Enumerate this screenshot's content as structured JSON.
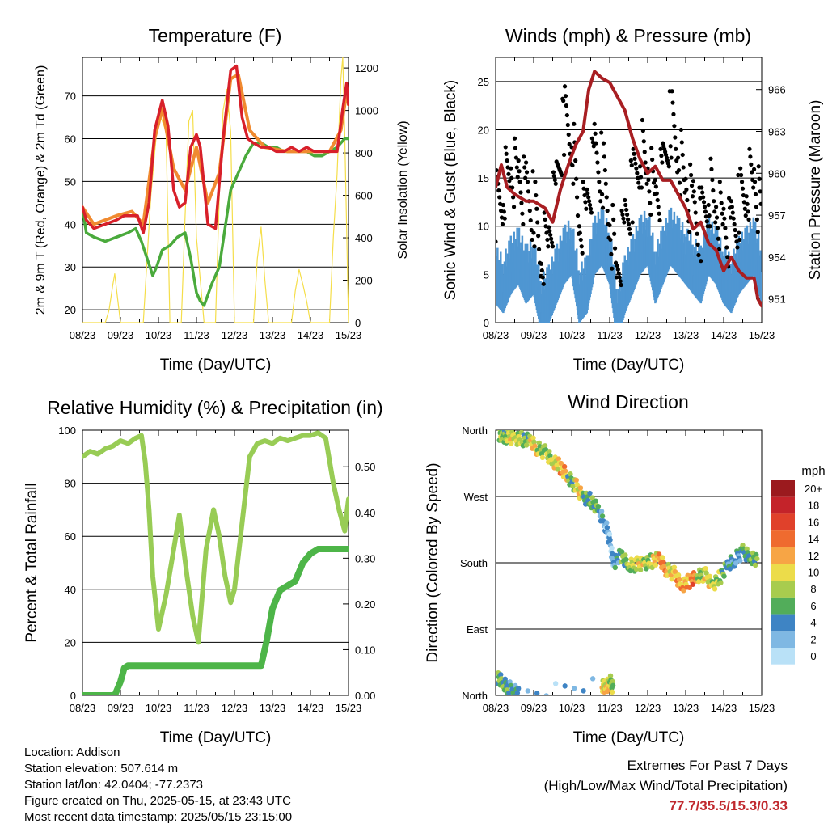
{
  "colors": {
    "temp2m": "#d8202a",
    "temp9m": "#f08a30",
    "dewpoint": "#4aaa3c",
    "insolation": "#f5de4a",
    "wind": "#4f96d2",
    "gust": "#000000",
    "pressure": "#a81e22",
    "rh": "#98cc55",
    "precip": "#4db548"
  },
  "info": {
    "location": "Location: Addison",
    "elevation": "Station elevation: 507.614 m",
    "latlon": "Station lat/lon: 42.0404; -77.2373",
    "created": "Figure created on Thu, 2025-05-15, at 23:43 UTC",
    "recent": "Most recent data timestamp: 2025/05/15 23:15:00"
  },
  "extremes": {
    "line1": "Extremes For Past 7 Days",
    "line2": "(High/Low/Max Wind/Total Precipitation)",
    "values": "77.7/35.5/15.3/0.33"
  },
  "legend": {
    "title": "mph",
    "labels": [
      "20+",
      "18",
      "16",
      "14",
      "12",
      "10",
      "8",
      "6",
      "4",
      "2",
      "0"
    ],
    "colors": [
      "#9b1a1e",
      "#c4232a",
      "#e0412b",
      "#ef6b2f",
      "#f7a545",
      "#ecdc4a",
      "#a8cc4e",
      "#52ad5a",
      "#3e84c4",
      "#7fb8e3",
      "#b9e1f7"
    ]
  },
  "chart_data": [
    {
      "type": "line",
      "title": "Temperature (F)",
      "xlabel": "Time (Day/UTC)",
      "ylabel": "2m & 9m T (Red, Orange) & 2m Td (Green)",
      "y2label": "Solar Insolation (Yellow)",
      "x_ticks": [
        "08/23",
        "09/23",
        "10/23",
        "11/23",
        "12/23",
        "13/23",
        "14/23",
        "15/23"
      ],
      "ylim": [
        17,
        79
      ],
      "yticks": [
        20,
        30,
        40,
        50,
        60,
        70
      ],
      "y2lim": [
        0,
        1250
      ],
      "y2ticks": [
        0,
        200,
        400,
        600,
        800,
        1000,
        1200
      ],
      "series": [
        {
          "key": "temp2m",
          "x": [
            0,
            0.1,
            0.3,
            0.6,
            0.9,
            1.1,
            1.3,
            1.45,
            1.6,
            1.75,
            1.9,
            2.1,
            2.25,
            2.4,
            2.55,
            2.7,
            2.85,
            3.0,
            3.1,
            3.3,
            3.5,
            3.7,
            3.9,
            4.05,
            4.2,
            4.35,
            4.5,
            4.7,
            4.9,
            5.1,
            5.3,
            5.5,
            5.7,
            5.9,
            6.1,
            6.3,
            6.5,
            6.7,
            6.85,
            6.95,
            7.0
          ],
          "y": [
            44,
            41,
            39,
            40,
            41,
            42,
            42,
            42,
            38,
            45,
            62,
            69,
            63,
            48,
            44,
            45,
            58,
            61,
            58,
            40,
            39,
            60,
            76,
            77,
            65,
            60,
            59,
            58,
            58,
            57,
            57,
            58,
            57,
            58,
            57,
            57,
            57,
            57,
            67,
            73,
            68
          ]
        },
        {
          "key": "temp9m",
          "x": [
            0,
            0.3,
            0.9,
            1.3,
            1.6,
            1.9,
            2.1,
            2.4,
            2.7,
            3.0,
            3.3,
            3.6,
            3.9,
            4.1,
            4.4,
            4.8,
            5.4,
            6.0,
            6.5,
            6.8,
            6.95,
            7.0
          ],
          "y": [
            44,
            40,
            42,
            43,
            40,
            60,
            67,
            53,
            48,
            58,
            45,
            52,
            74,
            75,
            62,
            58,
            57,
            57,
            57,
            62,
            71,
            68
          ]
        },
        {
          "key": "dewpoint",
          "x": [
            0,
            0.1,
            0.3,
            0.6,
            0.9,
            1.2,
            1.4,
            1.55,
            1.7,
            1.85,
            1.95,
            2.1,
            2.3,
            2.5,
            2.7,
            2.85,
            3.0,
            3.1,
            3.2,
            3.4,
            3.6,
            3.8,
            3.9,
            4.1,
            4.3,
            4.5,
            4.7,
            4.9,
            5.1,
            5.3,
            5.5,
            5.7,
            5.9,
            6.1,
            6.3,
            6.5,
            6.7,
            6.9,
            7.0
          ],
          "y": [
            44,
            38,
            37,
            36,
            37,
            38,
            39,
            36,
            32,
            28,
            30,
            34,
            35,
            37,
            38,
            32,
            24,
            22,
            21,
            26,
            30,
            42,
            48,
            52,
            56,
            59,
            59,
            58,
            58,
            57,
            57,
            57,
            57,
            56,
            56,
            57,
            58,
            60,
            60
          ]
        },
        {
          "key": "insolation",
          "x": [
            0,
            0.6,
            0.7,
            0.8,
            0.85,
            0.9,
            1.0,
            1.6,
            1.7,
            1.8,
            2.0,
            2.2,
            2.3,
            2.6,
            2.7,
            2.8,
            2.9,
            3.0,
            3.2,
            3.5,
            3.6,
            3.7,
            3.8,
            3.9,
            4.0,
            4.2,
            4.5,
            4.6,
            4.7,
            4.8,
            4.9,
            5.5,
            5.6,
            5.7,
            5.8,
            5.9,
            6.0,
            6.5,
            6.6,
            6.7,
            6.8,
            6.85,
            6.9,
            7.0
          ],
          "y": [
            0,
            0,
            60,
            180,
            230,
            150,
            0,
            0,
            300,
            600,
            1000,
            900,
            0,
            0,
            500,
            950,
            1000,
            400,
            0,
            0,
            600,
            1000,
            1100,
            900,
            0,
            0,
            0,
            300,
            450,
            200,
            0,
            0,
            150,
            250,
            180,
            100,
            0,
            0,
            400,
            700,
            1150,
            1250,
            900,
            0
          ]
        }
      ]
    },
    {
      "type": "scatter",
      "title": "Winds (mph) & Pressure (mb)",
      "xlabel": "Time (Day/UTC)",
      "ylabel": "Sonic Wind & Gust (Blue, Black)",
      "y2label": "Station Pressure (Maroon)",
      "x_ticks": [
        "08/23",
        "09/23",
        "10/23",
        "11/23",
        "12/23",
        "13/23",
        "14/23",
        "15/23"
      ],
      "ylim": [
        0,
        27.5
      ],
      "yticks": [
        0,
        5,
        10,
        15,
        20,
        25
      ],
      "y2lim": [
        949.3,
        968.3
      ],
      "y2ticks": [
        951,
        954,
        957,
        960,
        963,
        966
      ],
      "series": [
        {
          "key": "wind",
          "x": [
            0,
            0.2,
            0.4,
            0.6,
            0.8,
            1.0,
            1.2,
            1.4,
            1.6,
            1.8,
            2.0,
            2.2,
            2.4,
            2.6,
            2.8,
            3.0,
            3.2,
            3.4,
            3.6,
            3.8,
            4.0,
            4.2,
            4.4,
            4.6,
            4.8,
            5.0,
            5.2,
            5.4,
            5.6,
            5.8,
            6.0,
            6.2,
            6.4,
            6.6,
            6.8,
            7.0
          ],
          "y": [
            6,
            5,
            7,
            8,
            6,
            7,
            3,
            4,
            6,
            8,
            9,
            4,
            5,
            9,
            10,
            8,
            2,
            5,
            7,
            9,
            10,
            6,
            8,
            10,
            9,
            8,
            7,
            6,
            9,
            8,
            6,
            5,
            7,
            8,
            9,
            6
          ]
        },
        {
          "key": "gust",
          "x": [
            0,
            0.2,
            0.4,
            0.6,
            0.8,
            1.0,
            1.2,
            1.4,
            1.6,
            1.8,
            2.0,
            2.2,
            2.4,
            2.6,
            2.8,
            3.0,
            3.2,
            3.4,
            3.6,
            3.8,
            4.0,
            4.2,
            4.4,
            4.6,
            4.8,
            5.0,
            5.2,
            5.4,
            5.6,
            5.8,
            6.0,
            6.2,
            6.4,
            6.6,
            6.8,
            7.0
          ],
          "y": [
            12,
            14,
            16,
            15,
            13,
            12,
            7,
            9,
            14,
            21,
            20,
            10,
            12,
            17,
            16,
            11,
            5,
            10,
            14,
            18,
            16,
            13,
            15,
            21,
            18,
            14,
            12,
            10,
            14,
            12,
            10,
            9,
            12,
            14,
            15,
            11
          ]
        },
        {
          "key": "pressure",
          "x": [
            0,
            0.15,
            0.3,
            0.5,
            0.8,
            1.0,
            1.3,
            1.5,
            1.7,
            1.9,
            2.1,
            2.3,
            2.45,
            2.6,
            2.8,
            3.0,
            3.2,
            3.4,
            3.6,
            3.8,
            4.0,
            4.2,
            4.4,
            4.6,
            4.8,
            5.0,
            5.2,
            5.4,
            5.6,
            5.8,
            6.0,
            6.2,
            6.4,
            6.6,
            6.8,
            6.9,
            7.0
          ],
          "y": [
            959,
            960.6,
            959,
            958.5,
            958,
            958,
            957.5,
            956.5,
            958.8,
            960.5,
            962,
            963,
            966,
            967.3,
            966.8,
            966.5,
            965.5,
            964.5,
            962.5,
            961,
            960,
            960.5,
            959.5,
            959.5,
            958.5,
            957.5,
            956,
            956.5,
            955,
            954.5,
            953,
            954,
            953,
            952.5,
            952.5,
            951,
            950.5
          ]
        }
      ]
    },
    {
      "type": "line",
      "title": "Relative Humidity (%) & Precipitation (in)",
      "xlabel": "Time (Day/UTC)",
      "ylabel": "Percent & Total Rainfall",
      "x_ticks": [
        "08/23",
        "09/23",
        "10/23",
        "11/23",
        "12/23",
        "13/23",
        "14/23",
        "15/23"
      ],
      "ylim": [
        0,
        100
      ],
      "yticks": [
        0,
        20,
        40,
        60,
        80,
        100
      ],
      "y2lim": [
        0,
        0.58
      ],
      "y2ticks": [
        "0.00",
        "0.10",
        "0.20",
        "0.30",
        "0.40",
        "0.50"
      ],
      "series": [
        {
          "key": "rh",
          "x": [
            0,
            0.2,
            0.4,
            0.6,
            0.8,
            1.0,
            1.2,
            1.4,
            1.55,
            1.65,
            1.75,
            1.85,
            2.0,
            2.2,
            2.4,
            2.55,
            2.75,
            2.9,
            3.05,
            3.25,
            3.45,
            3.6,
            3.75,
            3.9,
            4.0,
            4.2,
            4.4,
            4.6,
            4.8,
            5.0,
            5.2,
            5.4,
            5.6,
            5.8,
            6.0,
            6.2,
            6.4,
            6.6,
            6.75,
            6.9,
            7.0
          ],
          "y": [
            90,
            92,
            91,
            93,
            94,
            96,
            95,
            97,
            98,
            88,
            70,
            45,
            25,
            38,
            55,
            68,
            45,
            30,
            20,
            55,
            70,
            60,
            45,
            35,
            40,
            65,
            90,
            95,
            96,
            95,
            97,
            96,
            97,
            98,
            98,
            99,
            97,
            80,
            70,
            62,
            74
          ]
        },
        {
          "key": "precip",
          "x": [
            0,
            0.7,
            0.85,
            1.0,
            1.1,
            1.2,
            1.5,
            2.0,
            2.5,
            3.0,
            3.5,
            4.0,
            4.5,
            4.7,
            4.85,
            5.0,
            5.2,
            5.4,
            5.6,
            5.8,
            6.0,
            6.2,
            6.5,
            7.0
          ],
          "y": [
            0,
            0,
            0,
            0.03,
            0.06,
            0.065,
            0.065,
            0.065,
            0.065,
            0.065,
            0.065,
            0.065,
            0.065,
            0.065,
            0.12,
            0.19,
            0.23,
            0.24,
            0.25,
            0.29,
            0.31,
            0.32,
            0.32,
            0.32
          ]
        }
      ]
    },
    {
      "type": "scatter",
      "title": "Wind Direction",
      "xlabel": "Time (Day/UTC)",
      "ylabel": "Direction (Colored By Speed)",
      "x_ticks": [
        "08/23",
        "09/23",
        "10/23",
        "11/23",
        "12/23",
        "13/23",
        "14/23",
        "15/23"
      ],
      "y_categories": [
        "North",
        "East",
        "South",
        "West",
        "North"
      ],
      "ylim": [
        0,
        360
      ],
      "series": [
        {
          "name": "",
          "x": [
            0.1,
            0.2,
            0.3,
            0.5,
            0.7,
            0.9,
            1.1,
            1.3,
            1.5,
            1.7,
            1.9,
            2.1,
            2.3,
            2.5,
            2.7,
            2.9,
            3.0,
            3.1,
            3.3,
            3.5,
            3.7,
            3.9,
            4.1,
            4.3,
            4.5,
            4.7,
            4.9,
            5.1,
            5.3,
            5.5,
            5.7,
            5.9,
            6.1,
            6.3,
            6.5,
            6.7,
            6.9
          ],
          "y": [
            355,
            350,
            352,
            350,
            348,
            345,
            335,
            330,
            320,
            310,
            295,
            285,
            270,
            265,
            250,
            230,
            210,
            180,
            190,
            175,
            178,
            180,
            182,
            185,
            170,
            165,
            150,
            155,
            160,
            165,
            150,
            160,
            175,
            185,
            195,
            190,
            180
          ],
          "speed": [
            7,
            6,
            9,
            8,
            6,
            10,
            7,
            8,
            9,
            11,
            6,
            10,
            5,
            6,
            3,
            2,
            1,
            4,
            6,
            8,
            9,
            7,
            10,
            12,
            9,
            11,
            11,
            13,
            7,
            9,
            8,
            6,
            4,
            3,
            5,
            6,
            7
          ]
        },
        {
          "name": "",
          "x": [
            0.05,
            0.2,
            0.35,
            0.6,
            2.8,
            2.9,
            3.0,
            3.1
          ],
          "y": [
            25,
            15,
            10,
            5,
            15,
            8,
            20,
            10
          ],
          "speed": [
            6,
            5,
            4,
            2,
            9,
            10,
            7,
            3
          ]
        }
      ]
    }
  ]
}
